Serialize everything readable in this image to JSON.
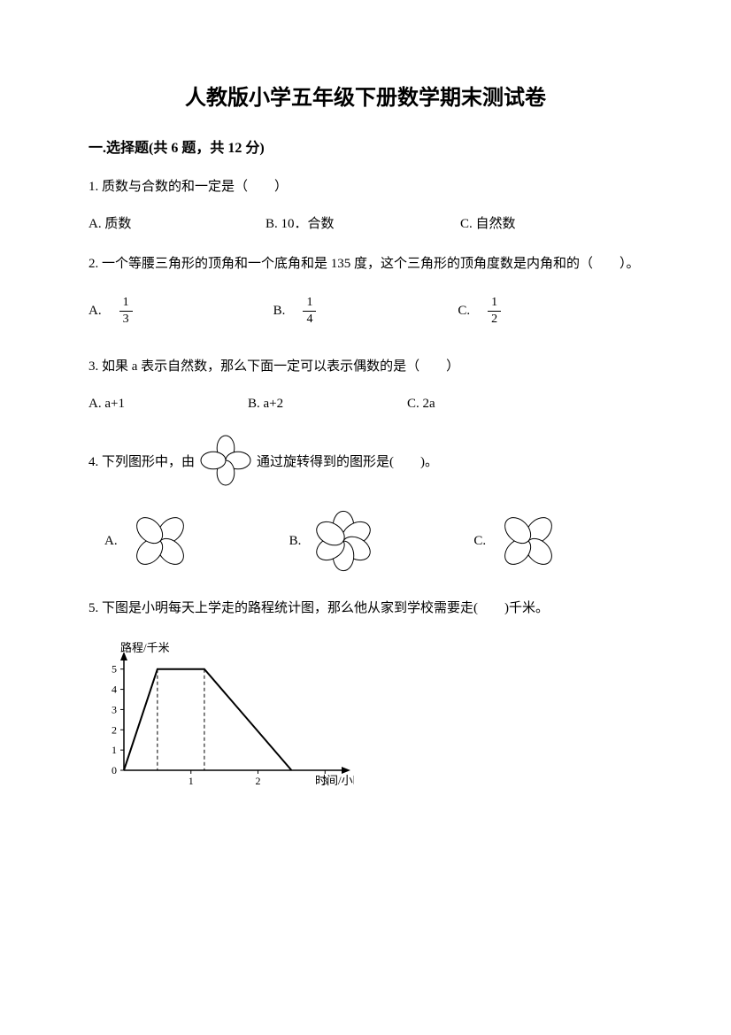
{
  "title": "人教版小学五年级下册数学期末测试卷",
  "section1": "一.选择题(共 6 题，共 12 分)",
  "q1": {
    "text": "1. 质数与合数的和一定是（　　）",
    "a": "A. 质数",
    "b": "B. 10．合数",
    "c": "C. 自然数"
  },
  "q2": {
    "text": "2. 一个等腰三角形的顶角和一个底角和是 135 度，这个三角形的顶角度数是内角和的（　　）。",
    "a_label": "A.",
    "a_num": "1",
    "a_den": "3",
    "b_label": "B.",
    "b_num": "1",
    "b_den": "4",
    "c_label": "C.",
    "c_num": "1",
    "c_den": "2"
  },
  "q3": {
    "text": "3. 如果 a 表示自然数，那么下面一定可以表示偶数的是（　　）",
    "a": "A. a+1",
    "b": "B. a+2",
    "c": "C. 2a"
  },
  "q4": {
    "prefix": "4. 下列图形中，由",
    "suffix": "通过旋转得到的图形是(　　)。",
    "a": "A.",
    "b": "B.",
    "c": "C.",
    "ref_rotation": 0,
    "a_rotation": 45,
    "b_rotation": 0,
    "c_rotation": 45,
    "b_six": true,
    "petal_fill": "#ffffff",
    "petal_stroke": "#000000"
  },
  "q5": {
    "text": "5. 下图是小明每天上学走的路程统计图，那么他从家到学校需要走(　　)千米。"
  },
  "chart": {
    "y_label": "路程/千米",
    "x_label": "时间/小时",
    "y_ticks": [
      "0",
      "1",
      "2",
      "3",
      "4",
      "5"
    ],
    "x_ticks": [
      "1",
      "2",
      "3"
    ],
    "stroke": "#000000",
    "line_points": [
      [
        0,
        0
      ],
      [
        0.5,
        5
      ],
      [
        1.2,
        5
      ],
      [
        2.5,
        0
      ]
    ],
    "dash1_x": 0.5,
    "dash2_x": 1.2,
    "xlim": [
      0,
      3.3
    ],
    "ylim": [
      0,
      5.6
    ]
  }
}
